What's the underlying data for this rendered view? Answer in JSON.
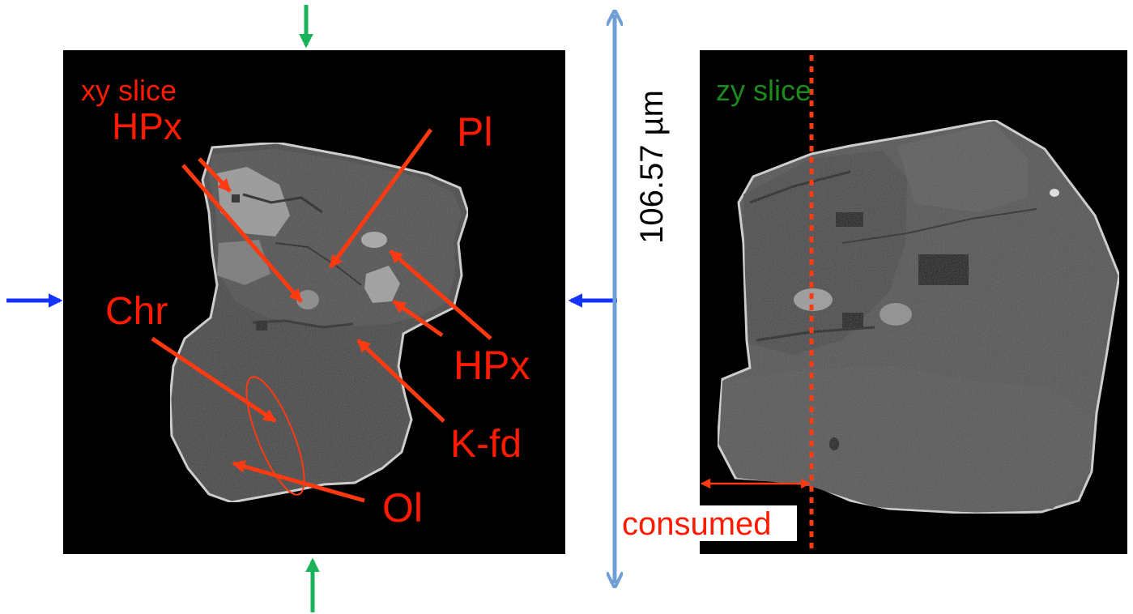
{
  "left_panel": {
    "slice_label": "xy slice",
    "minerals": {
      "hpx_top": "HPx",
      "pl": "Pl",
      "chr": "Chr",
      "hpx_right": "HPx",
      "kfd": "K-fd",
      "ol": "Ol"
    }
  },
  "scale": {
    "label": "106.57 µm"
  },
  "right_panel": {
    "slice_label": "zy slice",
    "consumed_label": "consumed"
  },
  "colors": {
    "label_red": "#ff1a00",
    "arrow_red": "#ff3a10",
    "slice_green": "#1e8a1e",
    "marker_green": "#19b35a",
    "marker_blue": "#1533ff",
    "scale_blue": "#6f9fd4",
    "dotted_line": "#ff3b14"
  }
}
